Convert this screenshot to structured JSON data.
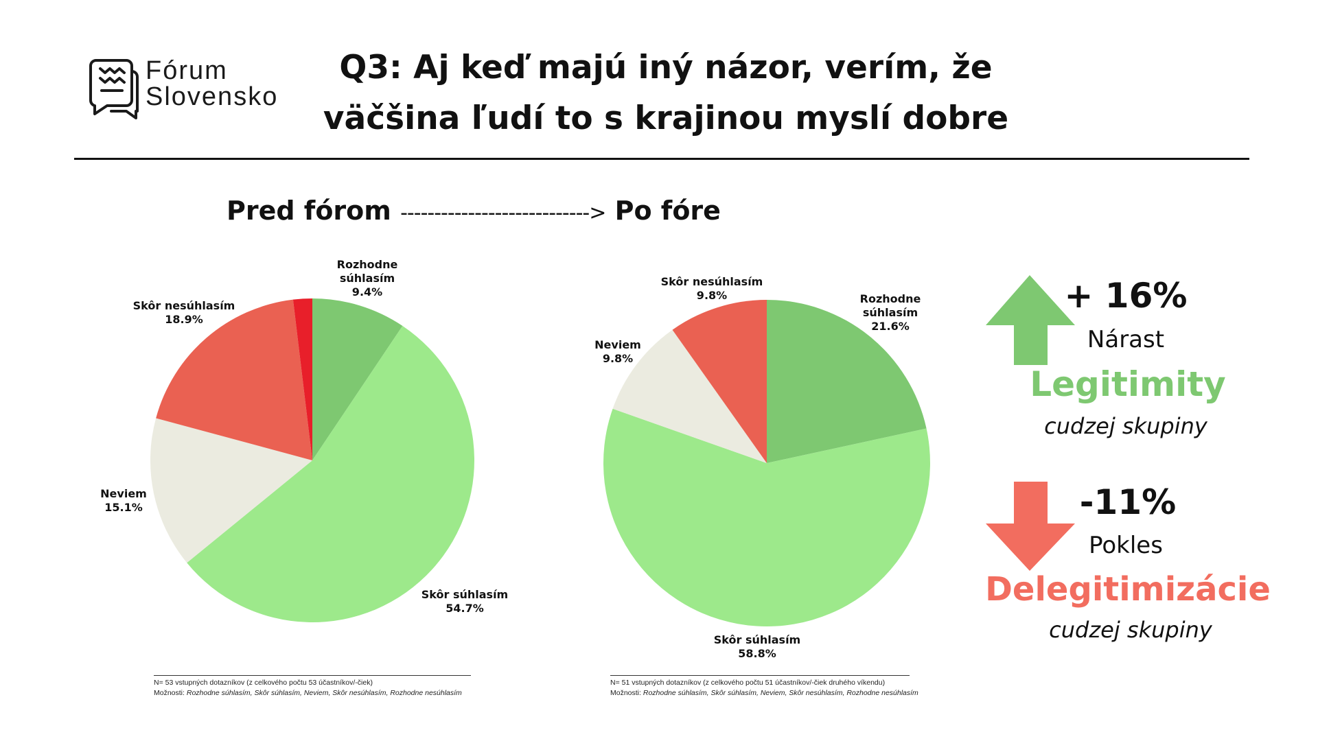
{
  "logo": {
    "line1": "Fórum",
    "line2": "Slovensko"
  },
  "title": {
    "line1": "Q3: Aj keď majú iný názor, verím, že",
    "line2": "väčšina ľudí to s krajinou myslí dobre"
  },
  "flow": {
    "before": "Pred fórom",
    "arrow": "---------------------------->",
    "after": "Po fóre"
  },
  "chart_data": [
    {
      "type": "pie",
      "title": "Pred fórom",
      "categories": [
        "Rozhodne súhlasím",
        "Skôr súhlasím",
        "Neviem",
        "Skôr nesúhlasím",
        "Rozhodne nesúhlasím"
      ],
      "values": [
        9.4,
        54.7,
        15.1,
        18.9,
        1.9
      ],
      "labels": [
        {
          "name": "Rozhodne\nsúhlasím",
          "value": "9.4%"
        },
        {
          "name": "Skôr súhlasím",
          "value": "54.7%"
        },
        {
          "name": "Neviem",
          "value": "15.1%"
        },
        {
          "name": "Skôr nesúhlasím",
          "value": "18.9%"
        },
        null
      ],
      "colors": [
        "#7ec871",
        "#9de98b",
        "#ebebe0",
        "#ea6152",
        "#e81f2a"
      ]
    },
    {
      "type": "pie",
      "title": "Po fóre",
      "categories": [
        "Rozhodne súhlasím",
        "Skôr súhlasím",
        "Neviem",
        "Skôr nesúhlasím"
      ],
      "values": [
        21.6,
        58.8,
        9.8,
        9.8
      ],
      "labels": [
        {
          "name": "Rozhodne\nsúhlasím",
          "value": "21.6%"
        },
        {
          "name": "Skôr súhlasím",
          "value": "58.8%"
        },
        {
          "name": "Neviem",
          "value": "9.8%"
        },
        {
          "name": "Skôr nesúhlasím",
          "value": "9.8%"
        }
      ],
      "colors": [
        "#7ec871",
        "#9de98b",
        "#ebebe0",
        "#ea6152"
      ]
    }
  ],
  "summary": {
    "up": {
      "value": "+ 16%",
      "word": "Nárast",
      "keyword": "Legitimity",
      "sub": "cudzej skupiny",
      "color": "#7ec871",
      "icon": "arrow-up-icon"
    },
    "down": {
      "value": "-11%",
      "word": "Pokles",
      "keyword": "Delegitimizácie",
      "sub": "cudzej skupiny",
      "color": "#f26d5f",
      "icon": "arrow-down-icon"
    }
  },
  "notes": [
    {
      "n": "N= 53 vstupných dotazníkov (z celkového počtu 53 účastníkov/-čiek)",
      "label": "Možnosti: ",
      "options": "Rozhodne súhlasím, Skôr súhlasím, Neviem, Skôr nesúhlasím, Rozhodne nesúhlasím"
    },
    {
      "n": "N= 51 vstupných dotazníkov (z celkového počtu 51 účastníkov/-čiek druhého víkendu)",
      "label": "Možnosti: ",
      "options": "Rozhodne súhlasím, Skôr súhlasím, Neviem, Skôr nesúhlasím, Rozhodne nesúhlasím"
    }
  ]
}
